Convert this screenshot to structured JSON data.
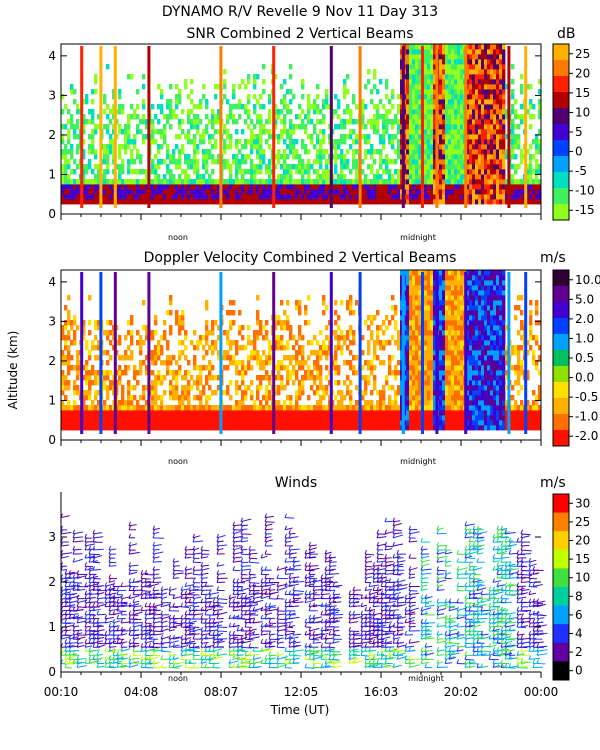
{
  "header": {
    "title": "DYNAMO R/V Revelle    9 Nov 11 Day 313"
  },
  "panels": {
    "snr": {
      "title": "SNR Combined 2 Vertical Beams",
      "unit": "dB"
    },
    "doppler": {
      "title": "Doppler Velocity Combined 2 Vertical Beams",
      "unit": "m/s"
    },
    "winds": {
      "title": "Winds",
      "unit": "m/s"
    }
  },
  "axes": {
    "ylabel": "Altitude (km)",
    "xlabel": "Time (UT)",
    "noon_label": "noon",
    "midnight_label": "midnight"
  },
  "chart_data": [
    {
      "type": "heatmap",
      "title": "SNR Combined 2 Vertical Beams",
      "ylabel": "Altitude (km)",
      "ylim": [
        0,
        4.3
      ],
      "yticks": [
        "0",
        "1",
        "2",
        "3",
        "4"
      ],
      "colorbar": {
        "unit": "dB",
        "ticks": [
          "25",
          "20",
          "15",
          "10",
          "5",
          "0",
          "-5",
          "-10",
          "-15"
        ],
        "colors": [
          "#ffb000",
          "#ff7a00",
          "#ff2000",
          "#b00000",
          "#500070",
          "#4000d0",
          "#0040ff",
          "#00a0ff",
          "#00e0c0",
          "#40f060",
          "#90ff20"
        ]
      },
      "x_markers": [
        "noon",
        "midnight"
      ]
    },
    {
      "type": "heatmap",
      "title": "Doppler Velocity Combined 2 Vertical Beams",
      "ylabel": "Altitude (km)",
      "ylim": [
        0,
        4.3
      ],
      "yticks": [
        "0",
        "1",
        "2",
        "3",
        "4"
      ],
      "colorbar": {
        "unit": "m/s",
        "ticks": [
          "10.0",
          "5.0",
          "2.0",
          "1.0",
          "0.5",
          "0.0",
          "-0.5",
          "-1.0",
          "-2.0"
        ],
        "colors": [
          "#300030",
          "#600090",
          "#4000d0",
          "#0040ff",
          "#00a0ff",
          "#00c060",
          "#90e000",
          "#ffe000",
          "#ffb000",
          "#ff7000",
          "#ff1000"
        ]
      },
      "x_markers": [
        "noon",
        "midnight"
      ]
    },
    {
      "type": "scatter",
      "title": "Winds",
      "xlabel": "Time (UT)",
      "ylim": [
        0,
        4
      ],
      "yticks": [
        "0",
        "1",
        "2",
        "3"
      ],
      "xticks": [
        "00:10",
        "04:08",
        "08:07",
        "12:05",
        "16:03",
        "20:02",
        "00:00"
      ],
      "colorbar": {
        "unit": "m/s",
        "ticks": [
          "30",
          "25",
          "20",
          "15",
          "10",
          "8",
          "6",
          "4",
          "2",
          "0"
        ],
        "colors": [
          "#ff0000",
          "#ff8000",
          "#ffd000",
          "#c0ff00",
          "#40e040",
          "#00d0a0",
          "#00a0ff",
          "#2030ff",
          "#6000a0",
          "#000000"
        ]
      },
      "x_markers": [
        "noon",
        "midnight"
      ]
    }
  ]
}
